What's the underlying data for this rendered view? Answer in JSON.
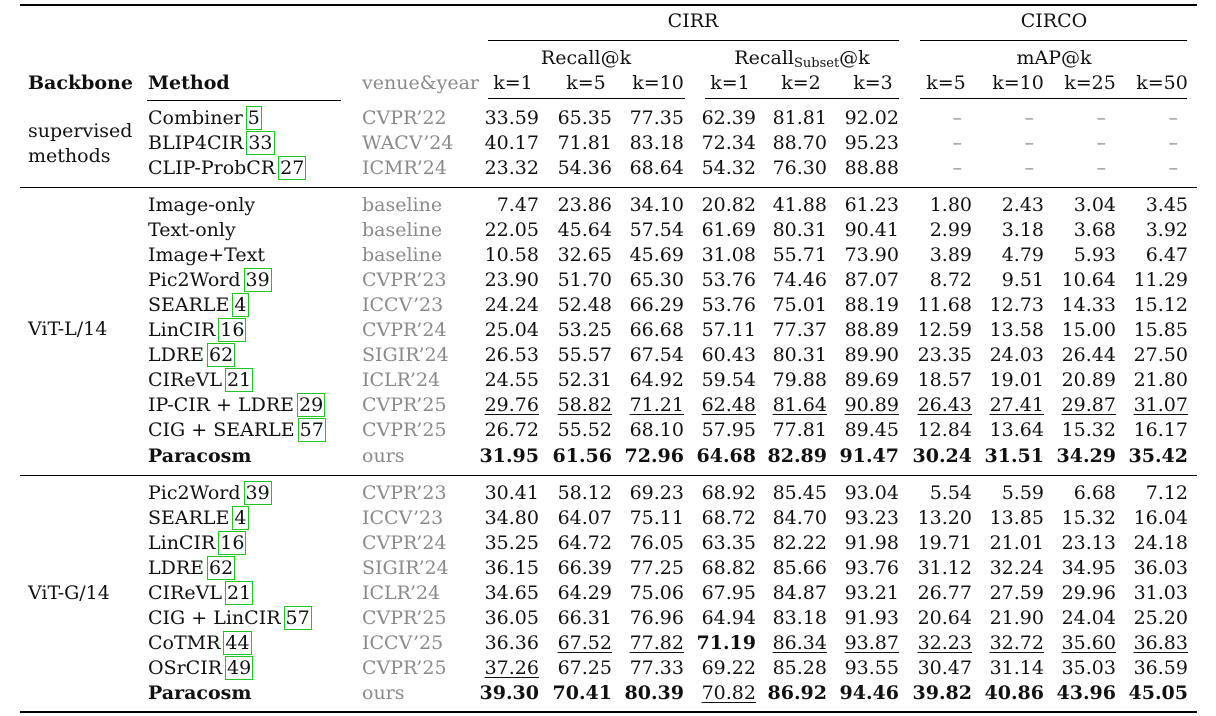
{
  "table": {
    "group_headers": {
      "cirr": "CIRR",
      "circo": "CIRCO"
    },
    "sub_headers": {
      "recall": "Recall@k",
      "recall_subset_main": "Recall",
      "recall_subset_sub": "Subset",
      "recall_subset_tail": "@k",
      "map": "mAP@k"
    },
    "col_headers": {
      "backbone": "Backbone",
      "method": "Method",
      "venue": "venue&year",
      "k": [
        "k=1",
        "k=5",
        "k=10",
        "k=1",
        "k=2",
        "k=3",
        "k=5",
        "k=10",
        "k=25",
        "k=50"
      ]
    },
    "sections": [
      {
        "backbone": [
          "supervised",
          "methods"
        ],
        "rows": [
          {
            "method": "Combiner",
            "cite": "5",
            "venue": "CVPR’22",
            "values": [
              "33.59",
              "65.35",
              "77.35",
              "62.39",
              "81.81",
              "92.02",
              "–",
              "–",
              "–",
              "–"
            ]
          },
          {
            "method": "BLIP4CIR",
            "cite": "33",
            "venue": "WACV’24",
            "values": [
              "40.17",
              "71.81",
              "83.18",
              "72.34",
              "88.70",
              "95.23",
              "–",
              "–",
              "–",
              "–"
            ]
          },
          {
            "method": "CLIP-ProbCR",
            "cite": "27",
            "venue": "ICMR’24",
            "values": [
              "23.32",
              "54.36",
              "68.64",
              "54.32",
              "76.30",
              "88.88",
              "–",
              "–",
              "–",
              "–"
            ]
          }
        ]
      },
      {
        "backbone": [
          "ViT-L/14"
        ],
        "rows": [
          {
            "method": "Image-only",
            "cite": "",
            "venue": "baseline",
            "values": [
              "7.47",
              "23.86",
              "34.10",
              "20.82",
              "41.88",
              "61.23",
              "1.80",
              "2.43",
              "3.04",
              "3.45"
            ]
          },
          {
            "method": "Text-only",
            "cite": "",
            "venue": "baseline",
            "values": [
              "22.05",
              "45.64",
              "57.54",
              "61.69",
              "80.31",
              "90.41",
              "2.99",
              "3.18",
              "3.68",
              "3.92"
            ]
          },
          {
            "method": "Image+Text",
            "cite": "",
            "venue": "baseline",
            "values": [
              "10.58",
              "32.65",
              "45.69",
              "31.08",
              "55.71",
              "73.90",
              "3.89",
              "4.79",
              "5.93",
              "6.47"
            ]
          },
          {
            "method": "Pic2Word",
            "cite": "39",
            "venue": "CVPR’23",
            "values": [
              "23.90",
              "51.70",
              "65.30",
              "53.76",
              "74.46",
              "87.07",
              "8.72",
              "9.51",
              "10.64",
              "11.29"
            ]
          },
          {
            "method": "SEARLE",
            "cite": "4",
            "venue": "ICCV’23",
            "values": [
              "24.24",
              "52.48",
              "66.29",
              "53.76",
              "75.01",
              "88.19",
              "11.68",
              "12.73",
              "14.33",
              "15.12"
            ]
          },
          {
            "method": "LinCIR",
            "cite": "16",
            "venue": "CVPR’24",
            "values": [
              "25.04",
              "53.25",
              "66.68",
              "57.11",
              "77.37",
              "88.89",
              "12.59",
              "13.58",
              "15.00",
              "15.85"
            ]
          },
          {
            "method": "LDRE",
            "cite": "62",
            "venue": "SIGIR’24",
            "values": [
              "26.53",
              "55.57",
              "67.54",
              "60.43",
              "80.31",
              "89.90",
              "23.35",
              "24.03",
              "26.44",
              "27.50"
            ]
          },
          {
            "method": "CIReVL",
            "cite": "21",
            "venue": "ICLR’24",
            "values": [
              "24.55",
              "52.31",
              "64.92",
              "59.54",
              "79.88",
              "89.69",
              "18.57",
              "19.01",
              "20.89",
              "21.80"
            ]
          },
          {
            "method": "IP-CIR + LDRE",
            "cite": "29",
            "venue": "CVPR’25",
            "values": [
              "29.76",
              "58.82",
              "71.21",
              "62.48",
              "81.64",
              "90.89",
              "26.43",
              "27.41",
              "29.87",
              "31.07"
            ],
            "underline": [
              0,
              1,
              2,
              3,
              4,
              5,
              6,
              7,
              8,
              9
            ]
          },
          {
            "method": "CIG + SEARLE",
            "cite": "57",
            "venue": "CVPR’25",
            "values": [
              "26.72",
              "55.52",
              "68.10",
              "57.95",
              "77.81",
              "89.45",
              "12.84",
              "13.64",
              "15.32",
              "16.17"
            ]
          },
          {
            "method": "Paracosm",
            "cite": "",
            "venue": "ours",
            "bold_method": true,
            "values": [
              "31.95",
              "61.56",
              "72.96",
              "64.68",
              "82.89",
              "91.47",
              "30.24",
              "31.51",
              "34.29",
              "35.42"
            ],
            "bold": [
              0,
              1,
              2,
              3,
              4,
              5,
              6,
              7,
              8,
              9
            ]
          }
        ]
      },
      {
        "backbone": [
          "ViT-G/14"
        ],
        "rows": [
          {
            "method": "Pic2Word",
            "cite": "39",
            "venue": "CVPR’23",
            "values": [
              "30.41",
              "58.12",
              "69.23",
              "68.92",
              "85.45",
              "93.04",
              "5.54",
              "5.59",
              "6.68",
              "7.12"
            ]
          },
          {
            "method": "SEARLE",
            "cite": "4",
            "venue": "ICCV’23",
            "values": [
              "34.80",
              "64.07",
              "75.11",
              "68.72",
              "84.70",
              "93.23",
              "13.20",
              "13.85",
              "15.32",
              "16.04"
            ]
          },
          {
            "method": "LinCIR",
            "cite": "16",
            "venue": "CVPR’24",
            "values": [
              "35.25",
              "64.72",
              "76.05",
              "63.35",
              "82.22",
              "91.98",
              "19.71",
              "21.01",
              "23.13",
              "24.18"
            ]
          },
          {
            "method": "LDRE",
            "cite": "62",
            "venue": "SIGIR’24",
            "values": [
              "36.15",
              "66.39",
              "77.25",
              "68.82",
              "85.66",
              "93.76",
              "31.12",
              "32.24",
              "34.95",
              "36.03"
            ]
          },
          {
            "method": "CIReVL",
            "cite": "21",
            "venue": "ICLR’24",
            "values": [
              "34.65",
              "64.29",
              "75.06",
              "67.95",
              "84.87",
              "93.21",
              "26.77",
              "27.59",
              "29.96",
              "31.03"
            ]
          },
          {
            "method": "CIG + LinCIR",
            "cite": "57",
            "venue": "CVPR’25",
            "values": [
              "36.05",
              "66.31",
              "76.96",
              "64.94",
              "83.18",
              "91.93",
              "20.64",
              "21.90",
              "24.04",
              "25.20"
            ]
          },
          {
            "method": "CoTMR",
            "cite": "44",
            "venue": "ICCV’25",
            "values": [
              "36.36",
              "67.52",
              "77.82",
              "71.19",
              "86.34",
              "93.87",
              "32.23",
              "32.72",
              "35.60",
              "36.83"
            ],
            "underline": [
              1,
              2,
              4,
              5,
              6,
              7,
              8,
              9
            ],
            "bold": [
              3
            ]
          },
          {
            "method": "OSrCIR",
            "cite": "49",
            "venue": "CVPR’25",
            "values": [
              "37.26",
              "67.25",
              "77.33",
              "69.22",
              "85.28",
              "93.55",
              "30.47",
              "31.14",
              "35.03",
              "36.59"
            ],
            "underline": [
              0
            ]
          },
          {
            "method": "Paracosm",
            "cite": "",
            "venue": "ours",
            "bold_method": true,
            "values": [
              "39.30",
              "70.41",
              "80.39",
              "70.82",
              "86.92",
              "94.46",
              "39.82",
              "40.86",
              "43.96",
              "45.05"
            ],
            "bold": [
              0,
              1,
              2,
              4,
              5,
              6,
              7,
              8,
              9
            ],
            "underline": [
              3
            ]
          }
        ]
      }
    ]
  }
}
